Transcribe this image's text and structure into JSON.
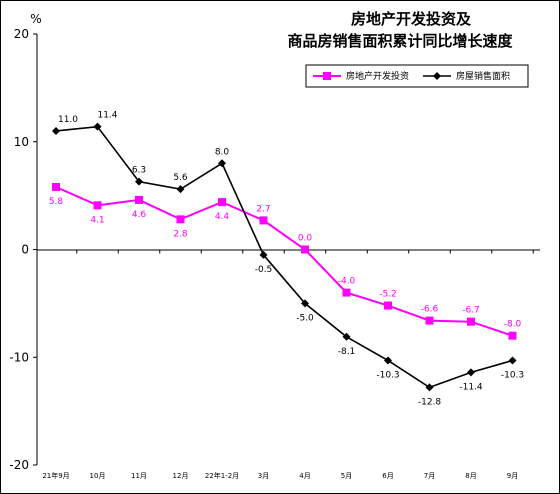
{
  "chart_data": {
    "type": "line",
    "title": [
      "房地产开发投资及",
      "商品房销售面积累计同比增长速度"
    ],
    "ylabel": "%",
    "ylim": [
      -20,
      20
    ],
    "yticks": [
      20,
      10,
      0,
      -10,
      -20
    ],
    "categories": [
      "21年9月",
      "10月",
      "11月",
      "12月",
      "22年1-2月",
      "3月",
      "4月",
      "5月",
      "6月",
      "7月",
      "8月",
      "9月"
    ],
    "series": [
      {
        "name": "房地产开发投资",
        "color": "#ff00ff",
        "marker": "square",
        "values": [
          5.8,
          4.1,
          4.6,
          2.8,
          4.4,
          2.7,
          0.0,
          -4.0,
          -5.2,
          -6.6,
          -6.7,
          -8.0
        ],
        "labels": [
          "5.8",
          "4.1",
          "4.6",
          "2.8",
          "4.4",
          "2.7",
          "0.0",
          "-4.0",
          "-5.2",
          "-6.6",
          "-6.7",
          "-8.0"
        ]
      },
      {
        "name": "房屋销售面积",
        "color": "#000000",
        "marker": "diamond",
        "values": [
          11.0,
          11.4,
          6.3,
          5.6,
          8.0,
          -0.5,
          -5.0,
          -8.1,
          -10.3,
          -12.8,
          -11.4,
          -10.3
        ],
        "labels": [
          "11.0",
          "11.4",
          "6.3",
          "5.6",
          "8.0",
          "-0.5",
          "-5.0",
          "-8.1",
          "-10.3",
          "-12.8",
          "-11.4",
          "-10.3"
        ]
      }
    ],
    "legend_position": "top-right",
    "grid": false
  }
}
